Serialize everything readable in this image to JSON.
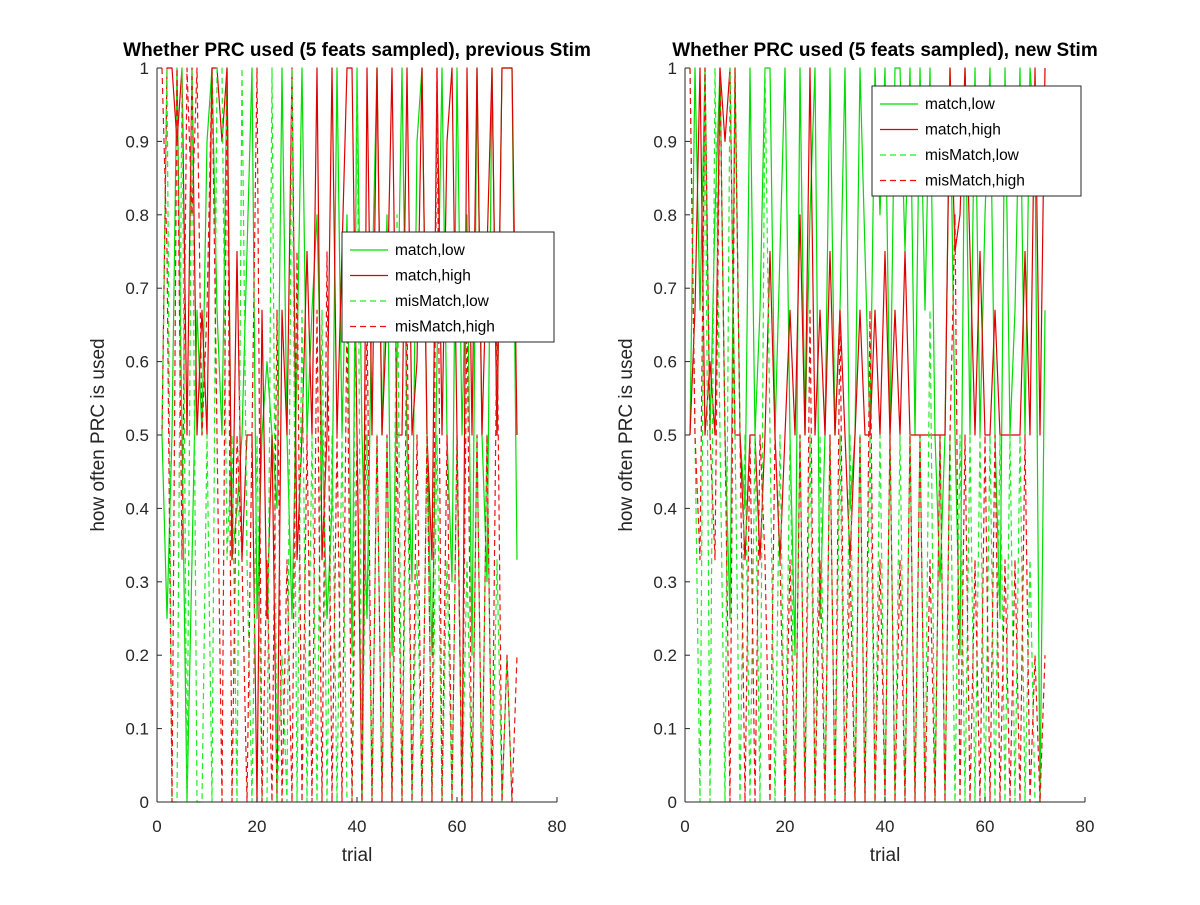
{
  "chart_data": [
    {
      "type": "line",
      "title": "Whether PRC used (5 feats sampled), previous Stim",
      "xlabel": "trial",
      "ylabel": "how often PRC is used",
      "xlim": [
        0,
        80
      ],
      "ylim": [
        0,
        1
      ],
      "xticks": [
        0,
        20,
        40,
        60,
        80
      ],
      "yticks": [
        0,
        0.1,
        0.2,
        0.3,
        0.4,
        0.5,
        0.6,
        0.7,
        0.8,
        0.9,
        1
      ],
      "legend_position": "middle-right",
      "grid": false,
      "series": [
        {
          "name": "match,low",
          "color": "#00dd00",
          "dash": "solid",
          "y": [
            0.5,
            0.25,
            0.5,
            1,
            0.5,
            0,
            0.33,
            0.67,
            0.5,
            0.9,
            1,
            0.67,
            0.5,
            1,
            0.33,
            0.4,
            0.5,
            0.75,
            1,
            0.25,
            0.5,
            0.6,
            0.5,
            0.4,
            1,
            0.5,
            0.25,
            0.6,
            1,
            0.5,
            0.67,
            0.8,
            0.5,
            0.25,
            0.4,
            1,
            0.5,
            0.8,
            0.2,
            1,
            0.5,
            0.25,
            0.7,
            1,
            0.5,
            0.8,
            0.2,
            0.6,
            1,
            0.5,
            0.3,
            0.9,
            1,
            0.5,
            0.2,
            0.6,
            1,
            0.5,
            0.3,
            1,
            0.5,
            0.8,
            0.2,
            1,
            0.5,
            0.3,
            1,
            0.5,
            1,
            1,
            1,
            0.33
          ]
        },
        {
          "name": "match,high",
          "color": "#dd0000",
          "dash": "solid",
          "y": [
            0.5,
            1,
            1,
            0.9,
            1,
            0.5,
            1,
            0.5,
            0.67,
            0.5,
            1,
            1,
            0.9,
            1,
            0.33,
            0.75,
            0.33,
            0.5,
            0.5,
            0,
            0.67,
            0.25,
            0.5,
            0,
            0.67,
            0.5,
            1,
            0.33,
            0.5,
            0.75,
            0.5,
            1,
            0.33,
            0.5,
            1,
            0.5,
            0.75,
            1,
            1,
            0.5,
            0,
            1,
            0.5,
            1,
            0.5,
            0.67,
            1,
            0.5,
            0.5,
            1,
            0.5,
            0.6,
            1,
            0.5,
            0.33,
            1,
            0.5,
            0.9,
            1,
            0.5,
            0,
            1,
            0.5,
            1,
            0.5,
            0.75,
            1,
            0.5,
            1,
            1,
            1,
            0.5
          ]
        },
        {
          "name": "misMatch,low",
          "color": "#22ee22",
          "dash": "dashed",
          "y": [
            0.5,
            1,
            0,
            0,
            1,
            0,
            1,
            0,
            0,
            0.5,
            0,
            1,
            1,
            0.33,
            0.5,
            0,
            1,
            0.33,
            0,
            0.5,
            0,
            0,
            1,
            0,
            0.2,
            0,
            1,
            0,
            0.67,
            0,
            0.5,
            0,
            0.67,
            0,
            0.5,
            0,
            0.5,
            0,
            0,
            1,
            0,
            0.5,
            0,
            0.5,
            0,
            0.5,
            0,
            0.8,
            0,
            0.5,
            0,
            0.33,
            0,
            0.5,
            0,
            0.5,
            0,
            0.33,
            0,
            0.5,
            0,
            0.33,
            0,
            0.5,
            0,
            0.5,
            0,
            0.33,
            0,
            0.2,
            0,
            0
          ]
        },
        {
          "name": "misMatch,high",
          "color": "#ee1111",
          "dash": "dashed",
          "y": [
            1,
            0.75,
            0,
            1,
            0.33,
            1,
            0.8,
            1,
            0.5,
            0.67,
            1,
            0.5,
            0,
            1,
            0,
            0.5,
            0.33,
            0,
            0.5,
            1,
            0,
            0.33,
            0,
            0.67,
            0,
            0.33,
            0,
            0.75,
            0,
            0.5,
            0,
            0.67,
            0,
            0.75,
            0,
            0.5,
            0,
            0.67,
            0,
            0.5,
            0,
            0.67,
            0,
            0.5,
            0,
            0.5,
            0,
            0.5,
            0,
            0.67,
            0,
            0.5,
            0,
            0.5,
            0,
            1,
            0,
            0.5,
            0,
            0.5,
            0,
            0.67,
            0,
            0.5,
            0,
            0.5,
            0,
            0.67,
            0,
            0.2,
            0,
            0.2
          ]
        }
      ]
    },
    {
      "type": "line",
      "title": "Whether PRC used (5 feats sampled), new Stim",
      "xlabel": "trial",
      "ylabel": "how often PRC is used",
      "xlim": [
        0,
        80
      ],
      "ylim": [
        0,
        1
      ],
      "xticks": [
        0,
        20,
        40,
        60,
        80
      ],
      "yticks": [
        0,
        0.1,
        0.2,
        0.3,
        0.4,
        0.5,
        0.6,
        0.7,
        0.8,
        0.9,
        1
      ],
      "legend_position": "top-right",
      "grid": false,
      "series": [
        {
          "name": "match,low",
          "color": "#00dd00",
          "dash": "solid",
          "y": [
            0.5,
            1,
            0.67,
            1,
            0.5,
            0.8,
            1,
            0.5,
            0.25,
            1,
            0.5,
            0.4,
            1,
            0.5,
            0.67,
            1,
            1,
            0.5,
            0.75,
            1,
            0.5,
            0.2,
            1,
            0.5,
            0.8,
            1,
            0.25,
            0.5,
            1,
            0.5,
            0.67,
            1,
            0.4,
            0.5,
            1,
            0.75,
            0.5,
            1,
            0.8,
            1,
            0.5,
            1,
            1,
            0.75,
            1,
            0.5,
            1,
            0.67,
            1,
            0.5,
            0.3,
            0.5,
            1,
            0.5,
            0.2,
            1,
            0.5,
            1,
            0.5,
            0.8,
            1,
            0.5,
            0.25,
            1,
            0.5,
            0.67,
            1,
            0.5,
            1,
            0.9,
            0,
            0.67
          ]
        },
        {
          "name": "match,high",
          "color": "#dd0000",
          "dash": "solid",
          "y": [
            0.5,
            0.67,
            1,
            0.5,
            0.6,
            0.5,
            1,
            0.9,
            1,
            0.5,
            0.5,
            0.33,
            0.5,
            0.5,
            0.33,
            0.5,
            0.75,
            0.5,
            0.33,
            0.5,
            0.67,
            0.5,
            0.8,
            0.5,
            1,
            0.5,
            0.67,
            0.5,
            0.75,
            0.5,
            0.67,
            0.5,
            0.33,
            0.5,
            0.67,
            0.5,
            0.5,
            0.67,
            0.5,
            0.75,
            0.5,
            0.67,
            0.5,
            0.75,
            0.5,
            0.5,
            0.5,
            0.5,
            0.5,
            0.5,
            0.5,
            0.5,
            1,
            0.75,
            0.8,
            1,
            0.75,
            0.5,
            0.75,
            0.5,
            0.5,
            0.67,
            0.5,
            0.5,
            0.5,
            0.5,
            0.5,
            0.75,
            0.5,
            1,
            0.5,
            1
          ]
        },
        {
          "name": "misMatch,low",
          "color": "#22ee22",
          "dash": "dashed",
          "y": [
            1,
            0.5,
            0,
            1,
            0,
            1,
            0.5,
            0,
            1,
            0.5,
            0,
            0.5,
            0,
            0.5,
            0,
            1,
            0.5,
            0,
            0.5,
            0,
            0.5,
            0,
            0.5,
            0,
            0.5,
            0,
            0.5,
            0,
            0.5,
            0,
            0.5,
            0,
            0.5,
            0,
            0.5,
            0,
            0.5,
            0,
            0.5,
            0,
            0.5,
            0,
            0.5,
            0,
            0.5,
            0,
            0.5,
            0,
            0.67,
            0,
            0.5,
            0,
            0.5,
            0,
            0.5,
            0,
            0.5,
            0,
            0.5,
            0,
            0.5,
            0,
            0.5,
            0,
            0.5,
            0,
            0.5,
            0,
            0.33,
            0,
            0,
            0
          ]
        },
        {
          "name": "misMatch,high",
          "color": "#ee1111",
          "dash": "dashed",
          "y": [
            1,
            0.5,
            0.33,
            1,
            0.5,
            0.33,
            1,
            0.5,
            0,
            1,
            0.5,
            0,
            0.5,
            0,
            0.5,
            0.33,
            0,
            0.5,
            0.33,
            0,
            0.33,
            0,
            0.5,
            0,
            0.67,
            0,
            0.33,
            0,
            0.5,
            0,
            0.67,
            0,
            0.33,
            0,
            0.5,
            0,
            0.67,
            0,
            0.33,
            0,
            0.5,
            0,
            0.33,
            0,
            0.5,
            0,
            0.5,
            0,
            0.33,
            0,
            0.5,
            0,
            0.5,
            0.8,
            0,
            0.5,
            0,
            0.33,
            0,
            0.5,
            0,
            0.5,
            0,
            0.33,
            0,
            0.33,
            0,
            0.5,
            0,
            0.2,
            0,
            0.2
          ]
        }
      ]
    }
  ]
}
